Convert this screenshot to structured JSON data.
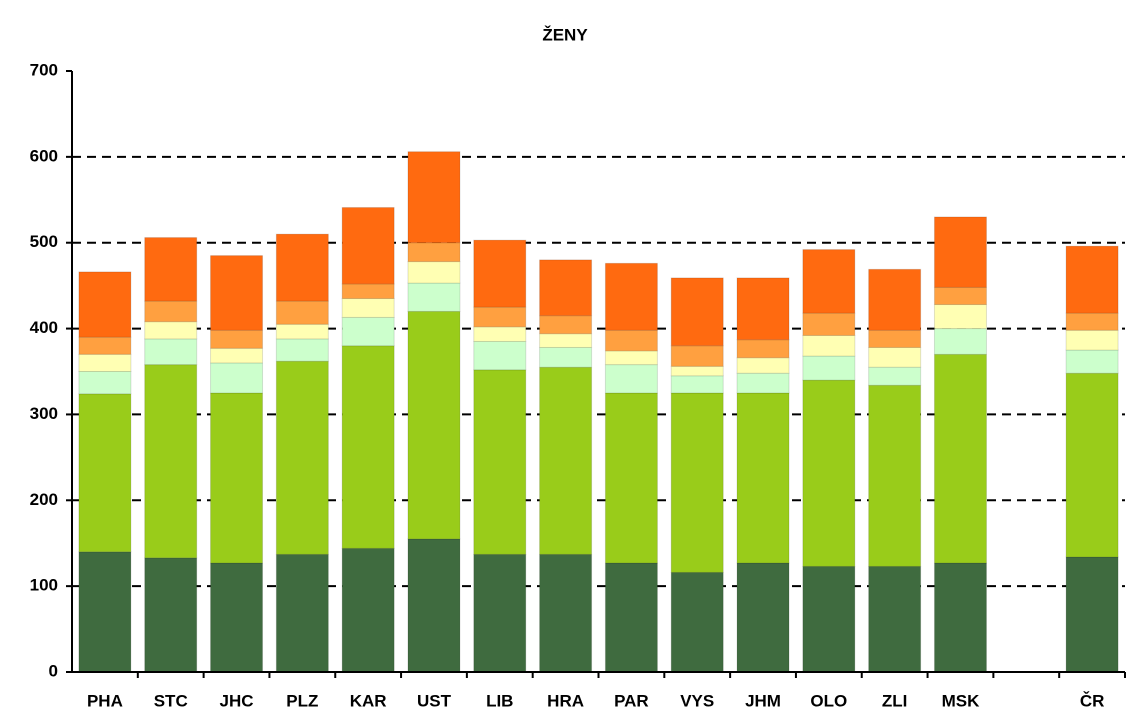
{
  "chart_data": {
    "type": "stacked_bar",
    "title": "ŽENY",
    "categories": [
      "PHA",
      "STC",
      "JHC",
      "PLZ",
      "KAR",
      "UST",
      "LIB",
      "HRA",
      "PAR",
      "VYS",
      "JHM",
      "OLO",
      "ZLI",
      "MSK",
      null,
      "ČR"
    ],
    "series": [
      {
        "color": "#3f6b3f",
        "values": [
          140,
          133,
          127,
          137,
          144,
          155,
          137,
          137,
          127,
          116,
          127,
          123,
          123,
          127,
          null,
          134
        ]
      },
      {
        "color": "#99cc1a",
        "values": [
          184,
          225,
          198,
          225,
          236,
          265,
          215,
          218,
          198,
          209,
          198,
          217,
          211,
          243,
          null,
          214
        ]
      },
      {
        "color": "#ccffcc",
        "values": [
          26,
          30,
          35,
          26,
          33,
          33,
          33,
          23,
          33,
          20,
          23,
          28,
          21,
          30,
          null,
          27
        ]
      },
      {
        "color": "#ffffb3",
        "values": [
          20,
          20,
          17,
          17,
          22,
          25,
          17,
          16,
          16,
          11,
          18,
          24,
          23,
          28,
          null,
          23
        ]
      },
      {
        "color": "#ffa040",
        "values": [
          20,
          24,
          21,
          27,
          17,
          22,
          23,
          21,
          24,
          24,
          21,
          26,
          20,
          20,
          null,
          20
        ]
      },
      {
        "color": "#ff6a10",
        "values": [
          76,
          74,
          87,
          78,
          89,
          106,
          78,
          65,
          78,
          79,
          72,
          74,
          71,
          82,
          null,
          78
        ]
      }
    ],
    "ylim": [
      0,
      700
    ],
    "yticks": [
      0,
      100,
      200,
      300,
      400,
      500,
      600,
      700
    ],
    "grid": true
  }
}
